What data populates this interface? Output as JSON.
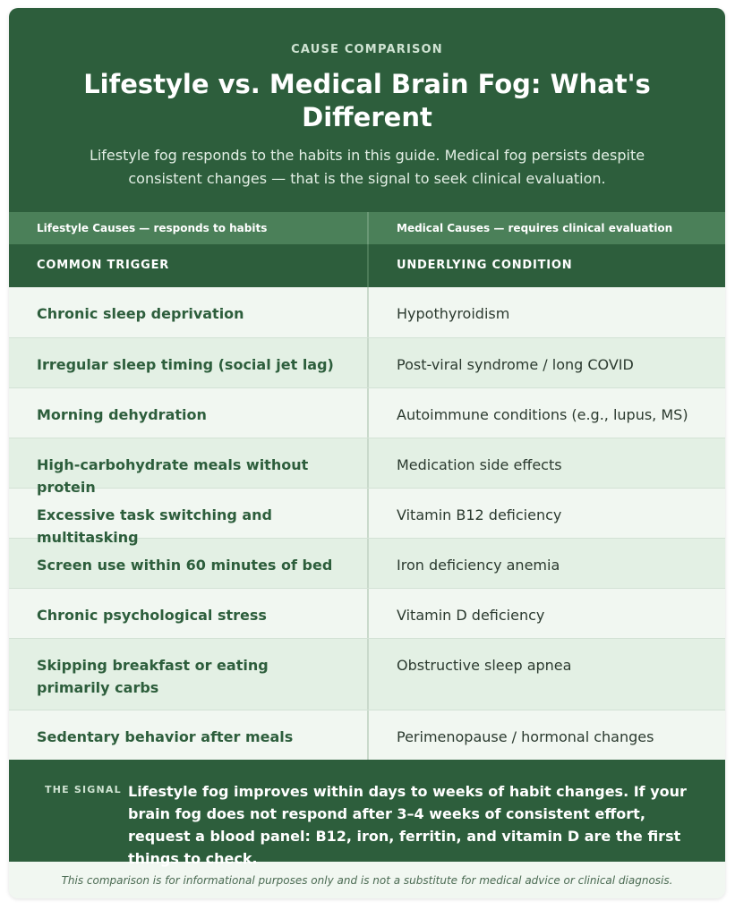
{
  "header": {
    "eyebrow": "CAUSE COMPARISON",
    "title": "Lifestyle vs. Medical Brain Fog: What's Different",
    "subtitle": "Lifestyle fog responds to the habits in this guide. Medical fog persists despite consistent changes — that is the signal to seek clinical evaluation."
  },
  "table": {
    "groups": [
      "Lifestyle Causes — responds to habits",
      "Medical Causes — requires clinical evaluation"
    ],
    "columns": [
      "COMMON TRIGGER",
      "UNDERLYING CONDITION"
    ],
    "rows": [
      {
        "trigger": "Chronic sleep deprivation",
        "condition": "Hypothyroidism"
      },
      {
        "trigger": "Irregular sleep timing (social jet lag)",
        "condition": "Post-viral syndrome / long COVID"
      },
      {
        "trigger": "Morning dehydration",
        "condition": "Autoimmune conditions (e.g., lupus, MS)"
      },
      {
        "trigger": "High-carbohydrate meals without protein",
        "condition": "Medication side effects"
      },
      {
        "trigger": "Excessive task switching and multitasking",
        "condition": "Vitamin B12 deficiency"
      },
      {
        "trigger": "Screen use within 60 minutes of bed",
        "condition": "Iron deficiency anemia"
      },
      {
        "trigger": "Chronic psychological stress",
        "condition": "Vitamin D deficiency"
      },
      {
        "trigger": "Skipping breakfast or eating primarily carbs",
        "condition": "Obstructive sleep apnea"
      },
      {
        "trigger": "Sedentary behavior after meals",
        "condition": "Perimenopause / hormonal changes"
      }
    ]
  },
  "signal": {
    "label": "THE SIGNAL",
    "text": "Lifestyle fog improves within days to weeks of habit changes. If your brain fog does not respond after 3–4 weeks of consistent effort, request a blood panel: B12, iron, ferritin, and vitamin D are the first things to check."
  },
  "disclaimer": "This comparison is for informational purposes only and is not a substitute for medical advice or clinical diagnosis."
}
